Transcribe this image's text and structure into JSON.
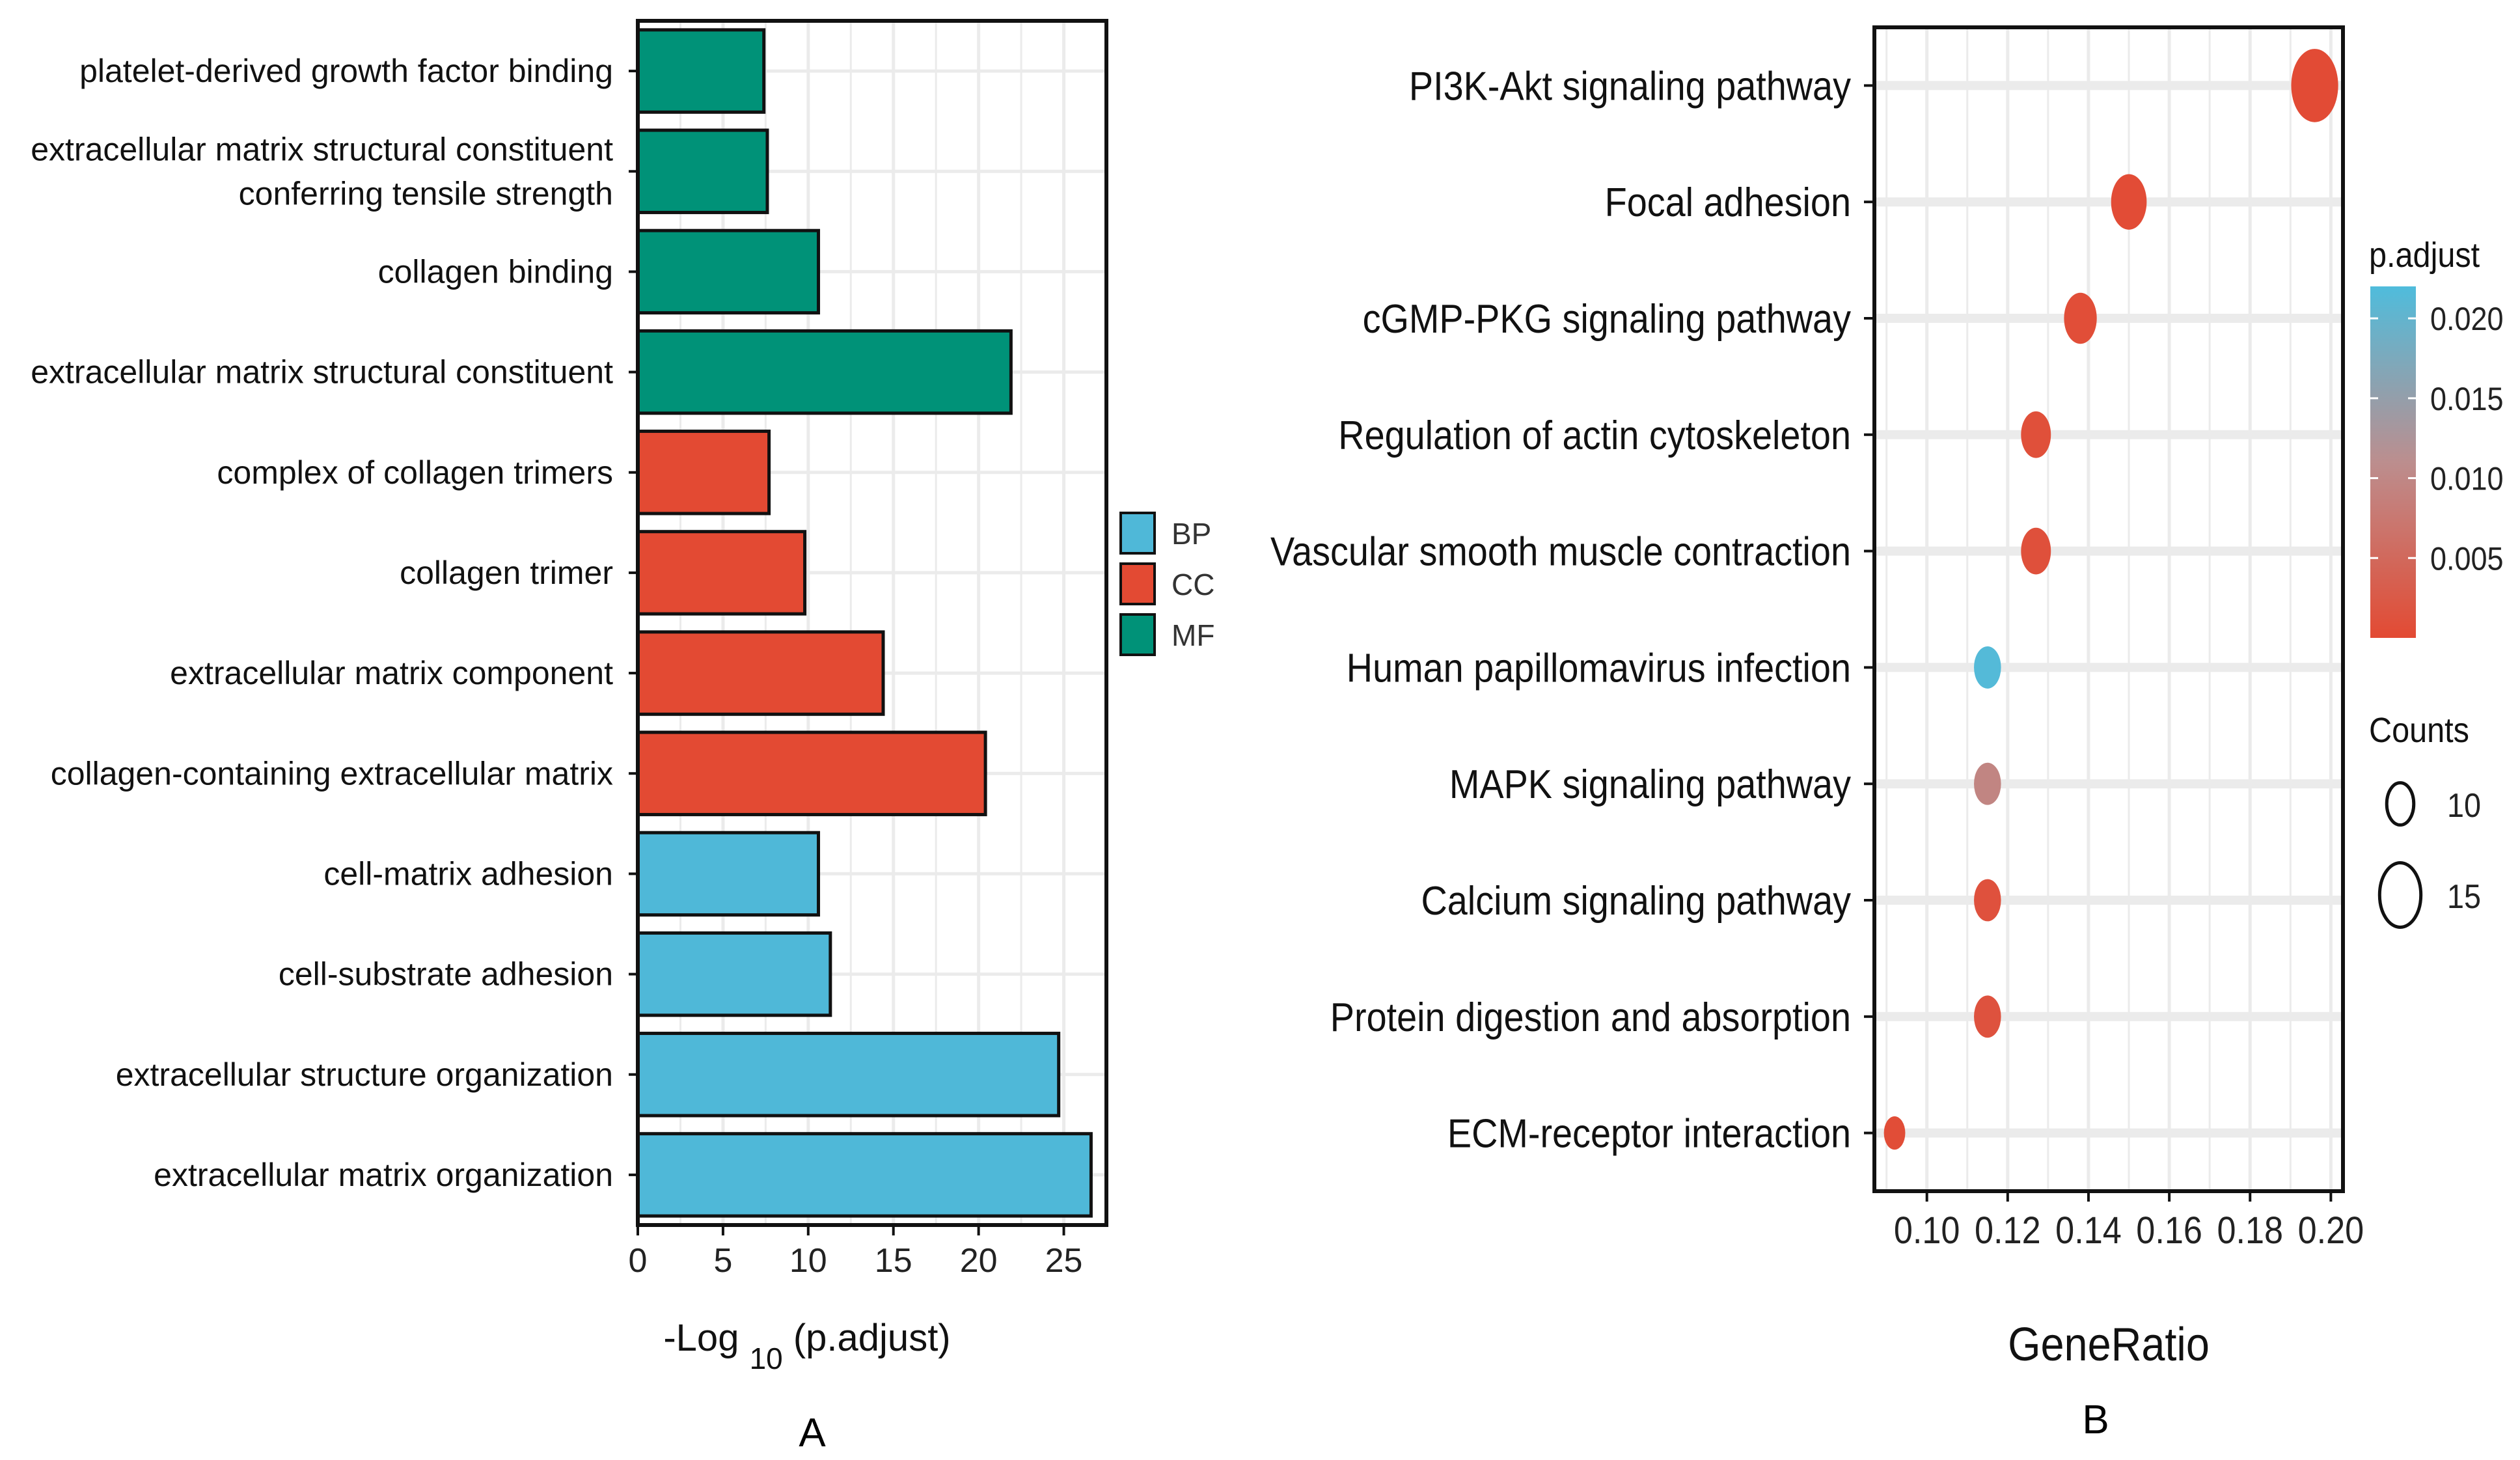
{
  "figure": {
    "panel_a_label": "A",
    "panel_b_label": "B"
  },
  "chart_data": [
    {
      "type": "bar",
      "orientation": "horizontal",
      "panel": "A",
      "title": "",
      "xlabel": "-Log",
      "xlabel_subscript": "10",
      "xlabel_suffix": "(p.adjust)",
      "ylabel": "",
      "xlim": [
        0,
        27.5
      ],
      "xticks": [
        0,
        5,
        10,
        15,
        20,
        25
      ],
      "grid": true,
      "legend_position": "right",
      "legend": [
        {
          "label": "BP",
          "color": "#4fb8d8"
        },
        {
          "label": "CC",
          "color": "#e34a33"
        },
        {
          "label": "MF",
          "color": "#009278"
        }
      ],
      "categories": [
        "platelet-derived growth factor binding",
        "extracellular matrix structural constituent\nconferring tensile strength",
        "collagen binding",
        "extracellular matrix structural constituent",
        "complex of collagen trimers",
        "collagen trimer",
        "extracellular matrix component",
        "collagen-containing extracellular matrix",
        "cell-matrix adhesion",
        "cell-substrate adhesion",
        "extracellular structure organization",
        "extracellular matrix organization"
      ],
      "groups": [
        "MF",
        "MF",
        "MF",
        "MF",
        "CC",
        "CC",
        "CC",
        "CC",
        "BP",
        "BP",
        "BP",
        "BP"
      ],
      "values": [
        7.4,
        7.6,
        10.6,
        21.9,
        7.7,
        9.8,
        14.4,
        20.4,
        10.6,
        11.3,
        24.7,
        26.6
      ]
    },
    {
      "type": "scatter",
      "subtype": "dot",
      "panel": "B",
      "title": "",
      "xlabel": "GeneRatio",
      "ylabel": "",
      "xlim": [
        0.087,
        0.203
      ],
      "xticks": [
        0.1,
        0.12,
        0.14,
        0.16,
        0.18,
        0.2
      ],
      "xtick_labels": [
        "0.10",
        "0.12",
        "0.14",
        "0.16",
        "0.18",
        "0.20"
      ],
      "grid": true,
      "legend_position": "right",
      "color_legend": {
        "title": "p.adjust",
        "range": [
          0.0,
          0.022
        ],
        "ticks": [
          0.02,
          0.015,
          0.01,
          0.005
        ],
        "tick_labels": [
          "0.020",
          "0.015",
          "0.010",
          "0.005"
        ],
        "low_color": "#e34a33",
        "high_color": "#4fbcdc"
      },
      "size_legend": {
        "title": "Counts",
        "values": [
          10,
          15
        ],
        "labels": [
          "10",
          "15"
        ]
      },
      "categories": [
        "PI3K-Akt signaling pathway",
        "Focal adhesion",
        "cGMP-PKG signaling pathway",
        "Regulation of actin cytoskeleton",
        "Vascular smooth muscle contraction",
        "Human papillomavirus infection",
        "MAPK signaling pathway",
        "Calcium signaling pathway",
        "Protein digestion and absorption",
        "ECM-receptor interaction"
      ],
      "x": [
        0.196,
        0.15,
        0.138,
        0.127,
        0.127,
        0.115,
        0.115,
        0.115,
        0.115,
        0.092
      ],
      "counts": [
        17,
        13,
        12,
        11,
        11,
        10,
        10,
        10,
        10,
        8
      ],
      "p_adjust": [
        0.0002,
        0.0004,
        0.0006,
        0.0009,
        0.001,
        0.0215,
        0.0095,
        0.0012,
        0.0013,
        0.0005
      ]
    }
  ]
}
